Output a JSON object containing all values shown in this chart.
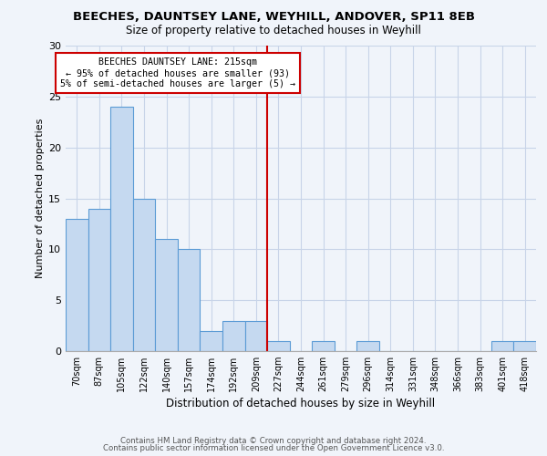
{
  "title": "BEECHES, DAUNTSEY LANE, WEYHILL, ANDOVER, SP11 8EB",
  "subtitle": "Size of property relative to detached houses in Weyhill",
  "xlabel": "Distribution of detached houses by size in Weyhill",
  "ylabel": "Number of detached properties",
  "footer_line1": "Contains HM Land Registry data © Crown copyright and database right 2024.",
  "footer_line2": "Contains public sector information licensed under the Open Government Licence v3.0.",
  "bar_labels": [
    "70sqm",
    "87sqm",
    "105sqm",
    "122sqm",
    "140sqm",
    "157sqm",
    "174sqm",
    "192sqm",
    "209sqm",
    "227sqm",
    "244sqm",
    "261sqm",
    "279sqm",
    "296sqm",
    "314sqm",
    "331sqm",
    "348sqm",
    "366sqm",
    "383sqm",
    "401sqm",
    "418sqm"
  ],
  "bar_values": [
    13,
    14,
    24,
    15,
    11,
    10,
    2,
    3,
    3,
    1,
    0,
    1,
    0,
    1,
    0,
    0,
    0,
    0,
    0,
    1,
    1
  ],
  "bar_color": "#c5d9f0",
  "bar_edge_color": "#5b9bd5",
  "vline_x_index": 8,
  "vline_color": "#cc0000",
  "annotation_title": "BEECHES DAUNTSEY LANE: 215sqm",
  "annotation_line2": "← 95% of detached houses are smaller (93)",
  "annotation_line3": "5% of semi-detached houses are larger (5) →",
  "annotation_box_edge": "#cc0000",
  "ylim": [
    0,
    30
  ],
  "yticks": [
    0,
    5,
    10,
    15,
    20,
    25,
    30
  ],
  "background_color": "#f0f4fa",
  "grid_color": "#c8d4e8"
}
